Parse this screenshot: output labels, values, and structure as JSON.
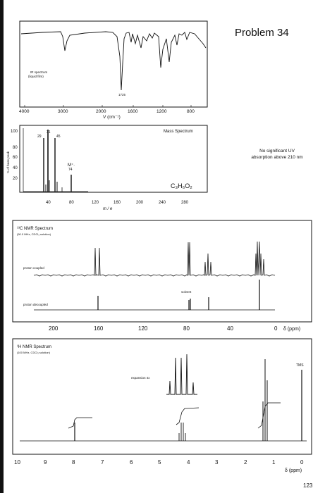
{
  "page": {
    "problem_title": "Problem 34",
    "uv_note_line1": "No significant UV",
    "uv_note_line2": "absorption above 210 nm",
    "page_number": "123"
  },
  "ir": {
    "label_line1": "IR spectrum",
    "label_line2": "(liquid film)",
    "peak_label": "1725",
    "ticks": [
      "4000",
      "3000",
      "2000",
      "1600",
      "1200",
      "800"
    ],
    "axis_label": "V (cm⁻¹)"
  },
  "ms": {
    "title": "Mass Spectrum",
    "y_ticks": [
      "100",
      "80",
      "60",
      "40",
      "20"
    ],
    "y_label": "% of base peak",
    "x_ticks": [
      "40",
      "80",
      "120",
      "160",
      "200",
      "240",
      "280"
    ],
    "x_label": "m / e",
    "peak_labels": [
      "29",
      "31",
      "45"
    ],
    "molecular_ion_label": "M⁺·",
    "molecular_ion_mass": "74",
    "formula": "C₃H₆O₂"
  },
  "c13": {
    "title": "¹³C NMR Spectrum",
    "conditions": "(50.0 MHz, CDCl₃ solution)",
    "coupled_label": "proton coupled",
    "decoupled_label": "proton decoupled",
    "solvent_label": "solvent",
    "ticks": [
      "200",
      "160",
      "120",
      "80",
      "40",
      "0"
    ],
    "axis_unit": "δ (ppm)"
  },
  "h1": {
    "title": "¹H NMR Spectrum",
    "conditions": "(100 MHz, CDCl₃ solution)",
    "tms_label": "TMS",
    "expansion_label": "expansion  4x",
    "ticks": [
      "10",
      "9",
      "8",
      "7",
      "6",
      "5",
      "4",
      "3",
      "2",
      "1",
      "0"
    ],
    "axis_unit": "δ (ppm)"
  }
}
